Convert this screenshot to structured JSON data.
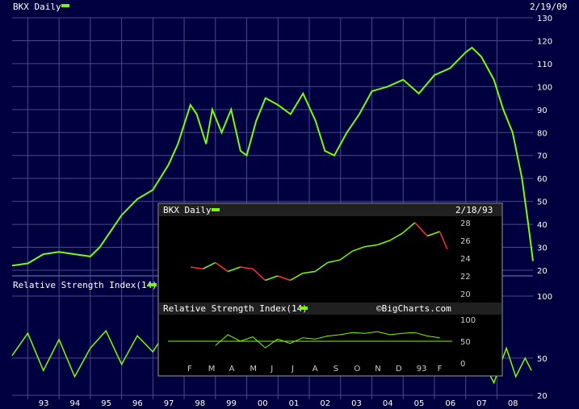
{
  "main": {
    "title": "BKX Daily",
    "date": "2/19/09",
    "rsi_label": "Relative Strength Index(14)",
    "price_ticks": [
      "130",
      "120",
      "110",
      "100",
      "90",
      "80",
      "70",
      "60",
      "50",
      "40",
      "30",
      "20"
    ],
    "rsi_ticks": [
      "100",
      "50",
      "20"
    ],
    "years": [
      "93",
      "94",
      "95",
      "96",
      "97",
      "98",
      "99",
      "00",
      "01",
      "02",
      "03",
      "04",
      "05",
      "06",
      "07",
      "08"
    ],
    "colors": {
      "line": "#7cfc00",
      "grid": "#4a4a8a",
      "background": "#000040"
    }
  },
  "inset": {
    "title": "BKX Daily",
    "date": "2/18/93",
    "rsi_label": "Relative Strength Index(14)",
    "watermark": "©BigCharts.com",
    "price_ticks": [
      "28",
      "26",
      "24",
      "22",
      "20"
    ],
    "rsi_ticks": [
      "100",
      "50",
      "0"
    ],
    "months": [
      "F",
      "M",
      "A",
      "M",
      "J",
      "J",
      "A",
      "S",
      "O",
      "N",
      "D",
      "93",
      "F"
    ],
    "colors": {
      "background": "#000000",
      "up": "#7cfc00",
      "down": "#ff3030"
    }
  },
  "chart_data": [
    {
      "type": "line",
      "title": "BKX Daily",
      "x": [
        "1992.5",
        "1993.0",
        "1993.5",
        "1994.0",
        "1994.5",
        "1995.0",
        "1995.3",
        "1995.6",
        "1996.0",
        "1996.5",
        "1997.0",
        "1997.5",
        "1997.8",
        "1998.2",
        "1998.4",
        "1998.7",
        "1998.9",
        "1999.2",
        "1999.5",
        "1999.8",
        "2000.0",
        "2000.3",
        "2000.6",
        "2001.0",
        "2001.4",
        "2001.8",
        "2002.2",
        "2002.5",
        "2002.8",
        "2003.2",
        "2003.6",
        "2004.0",
        "2004.5",
        "2005.0",
        "2005.5",
        "2006.0",
        "2006.5",
        "2007.0",
        "2007.2",
        "2007.5",
        "2007.9",
        "2008.2",
        "2008.5",
        "2008.8",
        "2009.0",
        "2009.15"
      ],
      "series": [
        {
          "values": [
            22,
            23,
            27,
            28,
            27,
            26,
            30,
            36,
            44,
            51,
            55,
            66,
            75,
            92,
            88,
            75,
            90,
            80,
            90,
            72,
            70,
            85,
            95,
            92,
            88,
            97,
            85,
            72,
            70,
            80,
            88,
            98,
            100,
            103,
            97,
            105,
            108,
            115,
            117,
            113,
            103,
            90,
            80,
            60,
            40,
            24
          ]
        }
      ],
      "ylim": [
        20,
        130
      ],
      "xlabel": "",
      "ylabel": ""
    },
    {
      "type": "line",
      "title": "Relative Strength Index(14)",
      "x": [
        "1992.5",
        "1993.0",
        "1993.5",
        "1994.0",
        "1994.5",
        "1995.0",
        "1995.5",
        "1996.0",
        "1996.5",
        "1997.0",
        "1997.5",
        "1997.9",
        "2007.4",
        "2007.9",
        "2008.3",
        "2008.6",
        "2008.9",
        "2009.1"
      ],
      "series": [
        {
          "values": [
            52,
            70,
            40,
            65,
            35,
            58,
            72,
            45,
            68,
            55,
            75,
            40,
            55,
            30,
            58,
            35,
            50,
            40
          ]
        }
      ],
      "ylim": [
        0,
        100
      ]
    },
    {
      "type": "line",
      "title": "BKX Daily",
      "x": [
        "1992.10",
        "1992.15",
        "1992.20",
        "1992.25",
        "1992.30",
        "1992.35",
        "1992.40",
        "1992.45",
        "1992.50",
        "1992.55",
        "1992.60",
        "1992.65",
        "1992.70",
        "1992.75",
        "1992.80",
        "1992.85",
        "1992.90",
        "1992.95",
        "1993.00",
        "1993.05",
        "1993.10",
        "1993.13"
      ],
      "series": [
        {
          "values": [
            23,
            22.8,
            23.5,
            22.5,
            23,
            22.8,
            21.5,
            22,
            21.5,
            22.3,
            22.5,
            23.5,
            23.8,
            24.8,
            25.3,
            25.5,
            26,
            26.8,
            28,
            26.5,
            27,
            25
          ]
        }
      ],
      "ylim": [
        20,
        28
      ]
    },
    {
      "type": "line",
      "title": "Relative Strength Index(14)",
      "x": [
        "1992.20",
        "1992.25",
        "1992.30",
        "1992.35",
        "1992.40",
        "1992.45",
        "1992.50",
        "1992.55",
        "1992.60",
        "1992.65",
        "1992.70",
        "1992.75",
        "1992.80",
        "1992.85",
        "1992.90",
        "1992.95",
        "1993.00",
        "1993.05",
        "1993.10"
      ],
      "series": [
        {
          "values": [
            40,
            65,
            50,
            60,
            35,
            55,
            45,
            58,
            55,
            62,
            65,
            70,
            68,
            72,
            65,
            68,
            70,
            62,
            58
          ]
        }
      ],
      "ylim": [
        0,
        100
      ]
    }
  ]
}
